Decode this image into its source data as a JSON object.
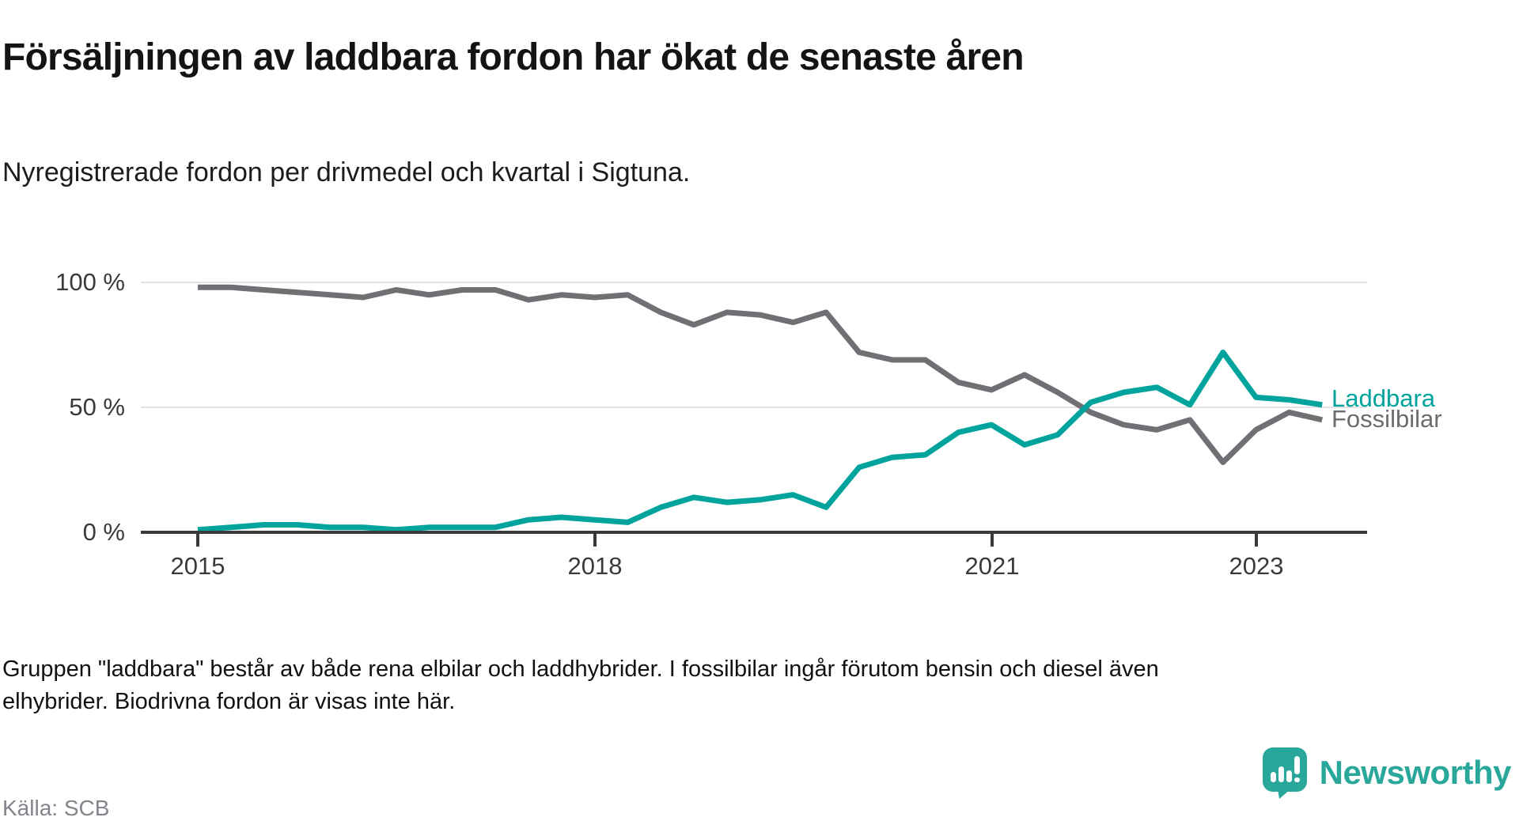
{
  "title": "Försäljningen av laddbara fordon har ökat de senaste åren",
  "subtitle": "Nyregistrerade fordon per drivmedel och kvartal i Sigtuna.",
  "footnote": "Gruppen \"laddbara\" består av både rena elbilar och laddhybrider. I fossilbilar ingår förutom bensin och diesel även elhybrider. Biodrivna fordon är visas inte här.",
  "source": "Källa: SCB",
  "logo_text": "Newsworthy",
  "colors": {
    "laddbara_line": "#00a49c",
    "fossilbilar_line": "#6f6f74",
    "gridline": "#e2e2e2",
    "axis": "#3a3a3a",
    "tick_label": "#3a3a3a",
    "logo_teal": "#2aa79b",
    "source_gray": "#84848c"
  },
  "chart_data": {
    "type": "line",
    "title": "Försäljningen av laddbara fordon har ökat de senaste åren",
    "subtitle": "Nyregistrerade fordon per drivmedel och kvartal i Sigtuna.",
    "unit": "percent of new registrations",
    "ylim": [
      0,
      100
    ],
    "grid": "horizontal",
    "legend_position": "right-end-of-lines",
    "yticks": [
      "100 %",
      "50 %",
      "0 %"
    ],
    "xticks": [
      "2015",
      "2018",
      "2021",
      "2023"
    ],
    "x": [
      "2015 K1",
      "2015 K2",
      "2015 K3",
      "2015 K4",
      "2016 K1",
      "2016 K2",
      "2016 K3",
      "2016 K4",
      "2017 K1",
      "2017 K2",
      "2017 K3",
      "2017 K4",
      "2018 K1",
      "2018 K2",
      "2018 K3",
      "2018 K4",
      "2019 K1",
      "2019 K2",
      "2019 K3",
      "2019 K4",
      "2020 K1",
      "2020 K2",
      "2020 K3",
      "2020 K4",
      "2021 K1",
      "2021 K2",
      "2021 K3",
      "2021 K4",
      "2022 K1",
      "2022 K2",
      "2022 K3",
      "2022 K4",
      "2023 K1",
      "2023 K2",
      "2023 K3"
    ],
    "series": [
      {
        "name": "Fossilbilar",
        "color": "#6f6f74",
        "values": [
          98,
          98,
          97,
          96,
          95,
          94,
          97,
          95,
          97,
          97,
          93,
          95,
          94,
          95,
          88,
          83,
          88,
          87,
          84,
          88,
          72,
          69,
          69,
          60,
          57,
          63,
          56,
          48,
          43,
          41,
          45,
          28,
          41,
          48,
          45
        ]
      },
      {
        "name": "Laddbara",
        "color": "#00a49c",
        "values": [
          1,
          2,
          3,
          3,
          2,
          2,
          1,
          2,
          2,
          2,
          5,
          6,
          5,
          4,
          10,
          14,
          12,
          13,
          15,
          10,
          26,
          30,
          31,
          40,
          43,
          35,
          39,
          52,
          56,
          58,
          51,
          72,
          54,
          53,
          51
        ]
      }
    ]
  }
}
